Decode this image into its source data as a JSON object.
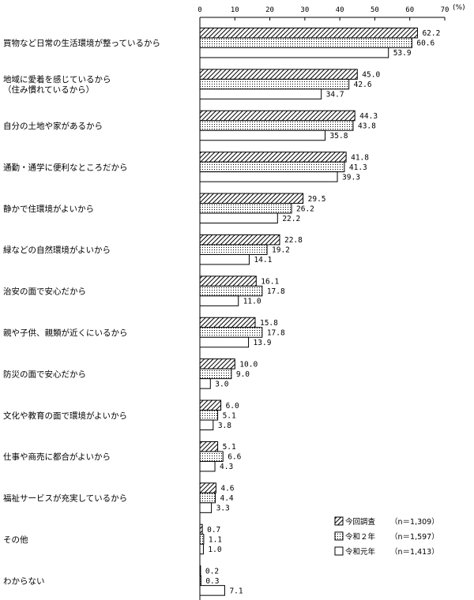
{
  "chart_data": {
    "type": "bar",
    "orientation": "horizontal",
    "unit": "(%)",
    "xlim": [
      0,
      70
    ],
    "xticks": [
      0,
      10,
      20,
      30,
      40,
      50,
      60,
      70
    ],
    "categories": [
      [
        "買物など日常の生活環境が整っているから"
      ],
      [
        "地域に愛着を感じているから",
        "（住み慣れているから）"
      ],
      [
        "自分の土地や家があるから"
      ],
      [
        "通勤・通学に便利なところだから"
      ],
      [
        "静かで住環境がよいから"
      ],
      [
        "緑などの自然環境がよいから"
      ],
      [
        "治安の面で安心だから"
      ],
      [
        "親や子供、親類が近くにいるから"
      ],
      [
        "防災の面で安心だから"
      ],
      [
        "文化や教育の面で環境がよいから"
      ],
      [
        "仕事や商売に都合がよいから"
      ],
      [
        "福祉サービスが充実しているから"
      ],
      [
        "その他"
      ],
      [
        "わからない"
      ]
    ],
    "series": [
      {
        "name": "今回調査",
        "n_label": "（n＝1,309）",
        "pattern": "hatch",
        "values": [
          62.2,
          45.0,
          44.3,
          41.8,
          29.5,
          22.8,
          16.1,
          15.8,
          10.0,
          6.0,
          5.1,
          4.6,
          0.7,
          0.2
        ]
      },
      {
        "name": "令和２年",
        "n_label": "（n＝1,597）",
        "pattern": "dots",
        "values": [
          60.6,
          42.6,
          43.8,
          41.3,
          26.2,
          19.2,
          17.8,
          17.8,
          9.0,
          5.1,
          6.6,
          4.4,
          1.1,
          0.3
        ]
      },
      {
        "name": "令和元年",
        "n_label": "（n＝1,413）",
        "pattern": "white",
        "values": [
          53.9,
          34.7,
          35.8,
          39.3,
          22.2,
          14.1,
          11.0,
          13.9,
          3.0,
          3.8,
          4.3,
          3.3,
          1.0,
          7.1
        ]
      }
    ],
    "grid": false,
    "legend_position": "bottom-right"
  }
}
